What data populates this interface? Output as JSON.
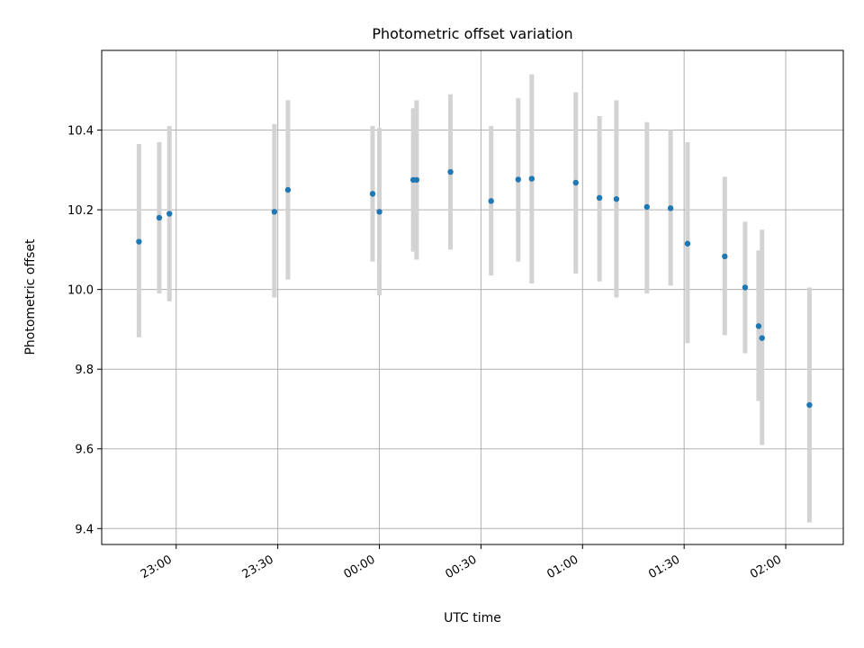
{
  "chart_data": {
    "type": "scatter",
    "title": "Photometric offset variation",
    "xlabel": "UTC time",
    "ylabel": "Photometric offset",
    "xlim": [
      "22:38",
      "02:17"
    ],
    "ylim": [
      9.36,
      10.6
    ],
    "x_ticks": [
      "23:00",
      "23:30",
      "00:00",
      "00:30",
      "01:00",
      "01:30",
      "02:00"
    ],
    "y_ticks": [
      "9.4",
      "9.6",
      "9.8",
      "10.0",
      "10.2",
      "10.4"
    ],
    "grid": true,
    "colors": {
      "point": "#1f77b4",
      "errorbar": "#d3d3d3",
      "grid": "#b0b0b0"
    },
    "points": [
      {
        "t": "22:49",
        "y": 10.12,
        "err_low": 9.88,
        "err_high": 10.365
      },
      {
        "t": "22:55",
        "y": 10.18,
        "err_low": 9.99,
        "err_high": 10.37
      },
      {
        "t": "22:58",
        "y": 10.19,
        "err_low": 9.97,
        "err_high": 10.41
      },
      {
        "t": "23:29",
        "y": 10.195,
        "err_low": 9.98,
        "err_high": 10.415
      },
      {
        "t": "23:33",
        "y": 10.25,
        "err_low": 10.025,
        "err_high": 10.475
      },
      {
        "t": "23:58",
        "y": 10.24,
        "err_low": 10.07,
        "err_high": 10.41
      },
      {
        "t": "00:00",
        "y": 10.195,
        "err_low": 9.985,
        "err_high": 10.405
      },
      {
        "t": "00:10",
        "y": 10.275,
        "err_low": 10.095,
        "err_high": 10.455
      },
      {
        "t": "00:11",
        "y": 10.275,
        "err_low": 10.075,
        "err_high": 10.475
      },
      {
        "t": "00:21",
        "y": 10.295,
        "err_low": 10.1,
        "err_high": 10.49
      },
      {
        "t": "00:33",
        "y": 10.222,
        "err_low": 10.035,
        "err_high": 10.41
      },
      {
        "t": "00:41",
        "y": 10.276,
        "err_low": 10.07,
        "err_high": 10.48
      },
      {
        "t": "00:45",
        "y": 10.278,
        "err_low": 10.015,
        "err_high": 10.54
      },
      {
        "t": "00:58",
        "y": 10.268,
        "err_low": 10.04,
        "err_high": 10.495
      },
      {
        "t": "01:05",
        "y": 10.23,
        "err_low": 10.02,
        "err_high": 10.435
      },
      {
        "t": "01:10",
        "y": 10.227,
        "err_low": 9.98,
        "err_high": 10.475
      },
      {
        "t": "01:19",
        "y": 10.207,
        "err_low": 9.99,
        "err_high": 10.42
      },
      {
        "t": "01:26",
        "y": 10.204,
        "err_low": 10.01,
        "err_high": 10.4
      },
      {
        "t": "01:31",
        "y": 10.115,
        "err_low": 9.865,
        "err_high": 10.37
      },
      {
        "t": "01:42",
        "y": 10.083,
        "err_low": 9.885,
        "err_high": 10.283
      },
      {
        "t": "01:48",
        "y": 10.005,
        "err_low": 9.84,
        "err_high": 10.17
      },
      {
        "t": "01:52",
        "y": 9.908,
        "err_low": 9.72,
        "err_high": 10.098
      },
      {
        "t": "01:53",
        "y": 9.878,
        "err_low": 9.61,
        "err_high": 10.15
      },
      {
        "t": "02:07",
        "y": 9.71,
        "err_low": 9.415,
        "err_high": 10.005
      }
    ]
  }
}
